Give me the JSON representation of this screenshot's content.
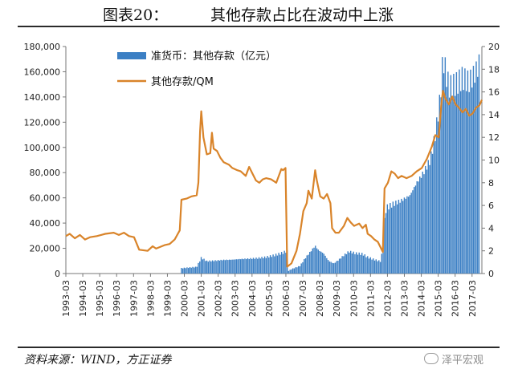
{
  "header": {
    "figure_label": "图表20：",
    "title": "其他存款占比在波动中上涨"
  },
  "footer": {
    "source": "资料来源：WIND，方正证券",
    "watermark": "泽平宏观",
    "watermark_icon": "wechat-icon"
  },
  "chart_data": {
    "type": "bar+line",
    "title": "其他存款占比在波动中上涨",
    "x_tick_labels": [
      "1993-03",
      "1994-03",
      "1995-03",
      "1996-03",
      "1997-03",
      "1998-03",
      "1999-03",
      "2000-03",
      "2001-03",
      "2002-03",
      "2003-03",
      "2004-03",
      "2005-03",
      "2006-03",
      "2007-03",
      "2008-03",
      "2009-03",
      "2010-03",
      "2011-03",
      "2012-03",
      "2013-03",
      "2014-03",
      "2015-03",
      "2016-03",
      "2017-03"
    ],
    "x_range": [
      1993.17,
      2017.75
    ],
    "y_left": {
      "ticks": [
        "0",
        "20,000",
        "40,000",
        "60,000",
        "80,000",
        "100,000",
        "120,000",
        "140,000",
        "160,000",
        "180,000"
      ],
      "range": [
        0,
        180000
      ]
    },
    "y_right": {
      "ticks": [
        "0",
        "2",
        "4",
        "6",
        "8",
        "10",
        "12",
        "14",
        "16",
        "18",
        "20"
      ],
      "range": [
        0,
        20
      ]
    },
    "grid": false,
    "legend_position": "top-left",
    "series": [
      {
        "name": "准货币：其他存款（亿元）",
        "kind": "bar",
        "axis": "left",
        "color": "#3b7fc4",
        "points": [
          [
            2000.0,
            4200
          ],
          [
            2000.5,
            4800
          ],
          [
            2000.9,
            5200
          ],
          [
            2001.17,
            12500
          ],
          [
            2001.5,
            9800
          ],
          [
            2002.0,
            10200
          ],
          [
            2002.5,
            10800
          ],
          [
            2003.0,
            11000
          ],
          [
            2003.5,
            11500
          ],
          [
            2004.0,
            11800
          ],
          [
            2004.5,
            12200
          ],
          [
            2005.0,
            13000
          ],
          [
            2005.5,
            14500
          ],
          [
            2006.0,
            16500
          ],
          [
            2006.15,
            17500
          ],
          [
            2006.25,
            1500
          ],
          [
            2006.5,
            3500
          ],
          [
            2007.0,
            6000
          ],
          [
            2007.3,
            12000
          ],
          [
            2007.6,
            17000
          ],
          [
            2007.9,
            22000
          ],
          [
            2008.1,
            18500
          ],
          [
            2008.4,
            16000
          ],
          [
            2008.7,
            10000
          ],
          [
            2009.0,
            8000
          ],
          [
            2009.3,
            11000
          ],
          [
            2009.6,
            14500
          ],
          [
            2009.9,
            17500
          ],
          [
            2010.3,
            16000
          ],
          [
            2010.7,
            15500
          ],
          [
            2011.0,
            13000
          ],
          [
            2011.4,
            11000
          ],
          [
            2011.8,
            9500
          ],
          [
            2012.0,
            42000
          ],
          [
            2012.1,
            52000
          ],
          [
            2012.5,
            55000
          ],
          [
            2013.0,
            58000
          ],
          [
            2013.5,
            62000
          ],
          [
            2013.9,
            72000
          ],
          [
            2014.3,
            80000
          ],
          [
            2014.7,
            90000
          ],
          [
            2015.0,
            110000
          ],
          [
            2015.3,
            140000
          ],
          [
            2015.4,
            162000
          ],
          [
            2015.5,
            168000
          ],
          [
            2015.8,
            148000
          ],
          [
            2016.2,
            150000
          ],
          [
            2016.6,
            155000
          ],
          [
            2017.0,
            152000
          ],
          [
            2017.3,
            158000
          ],
          [
            2017.5,
            163000
          ],
          [
            2017.65,
            170000
          ]
        ]
      },
      {
        "name": "其他存款/QM",
        "kind": "line",
        "axis": "right",
        "color": "#d9842a",
        "points": [
          [
            1993.17,
            3.3
          ],
          [
            1993.4,
            3.5
          ],
          [
            1993.7,
            3.1
          ],
          [
            1994.0,
            3.4
          ],
          [
            1994.3,
            3.0
          ],
          [
            1994.6,
            3.2
          ],
          [
            1995.0,
            3.3
          ],
          [
            1995.5,
            3.5
          ],
          [
            1996.0,
            3.6
          ],
          [
            1996.3,
            3.4
          ],
          [
            1996.6,
            3.6
          ],
          [
            1996.9,
            3.3
          ],
          [
            1997.2,
            3.2
          ],
          [
            1997.5,
            2.1
          ],
          [
            1998.0,
            2.0
          ],
          [
            1998.3,
            2.4
          ],
          [
            1998.5,
            2.2
          ],
          [
            1999.0,
            2.5
          ],
          [
            1999.3,
            2.6
          ],
          [
            1999.6,
            3.0
          ],
          [
            1999.9,
            3.8
          ],
          [
            2000.0,
            6.5
          ],
          [
            2000.3,
            6.6
          ],
          [
            2000.6,
            6.8
          ],
          [
            2000.9,
            6.9
          ],
          [
            2001.0,
            8.0
          ],
          [
            2001.1,
            12.5
          ],
          [
            2001.17,
            14.3
          ],
          [
            2001.3,
            12.0
          ],
          [
            2001.5,
            10.5
          ],
          [
            2001.7,
            10.6
          ],
          [
            2001.8,
            12.4
          ],
          [
            2001.9,
            11.0
          ],
          [
            2002.1,
            10.8
          ],
          [
            2002.3,
            10.2
          ],
          [
            2002.5,
            9.8
          ],
          [
            2002.8,
            9.6
          ],
          [
            2003.0,
            9.3
          ],
          [
            2003.3,
            9.1
          ],
          [
            2003.5,
            9.0
          ],
          [
            2003.8,
            8.6
          ],
          [
            2004.0,
            9.4
          ],
          [
            2004.2,
            8.8
          ],
          [
            2004.4,
            8.2
          ],
          [
            2004.6,
            8.0
          ],
          [
            2004.8,
            8.3
          ],
          [
            2005.0,
            8.4
          ],
          [
            2005.3,
            8.3
          ],
          [
            2005.6,
            8.0
          ],
          [
            2005.9,
            9.2
          ],
          [
            2006.0,
            9.1
          ],
          [
            2006.15,
            9.3
          ],
          [
            2006.25,
            0.6
          ],
          [
            2006.5,
            0.9
          ],
          [
            2006.8,
            2.0
          ],
          [
            2007.0,
            3.5
          ],
          [
            2007.2,
            5.5
          ],
          [
            2007.4,
            6.2
          ],
          [
            2007.5,
            7.3
          ],
          [
            2007.7,
            6.6
          ],
          [
            2007.9,
            9.1
          ],
          [
            2008.0,
            8.2
          ],
          [
            2008.2,
            6.8
          ],
          [
            2008.4,
            6.6
          ],
          [
            2008.6,
            7.0
          ],
          [
            2008.8,
            6.2
          ],
          [
            2008.9,
            4.0
          ],
          [
            2009.1,
            3.6
          ],
          [
            2009.3,
            3.6
          ],
          [
            2009.6,
            4.2
          ],
          [
            2009.8,
            4.9
          ],
          [
            2010.0,
            4.5
          ],
          [
            2010.2,
            4.2
          ],
          [
            2010.5,
            4.4
          ],
          [
            2010.7,
            4.0
          ],
          [
            2010.9,
            4.3
          ],
          [
            2011.0,
            3.5
          ],
          [
            2011.2,
            3.3
          ],
          [
            2011.4,
            3.0
          ],
          [
            2011.6,
            2.8
          ],
          [
            2011.8,
            2.2
          ],
          [
            2011.9,
            1.9
          ],
          [
            2012.0,
            7.5
          ],
          [
            2012.2,
            8.0
          ],
          [
            2012.4,
            9.0
          ],
          [
            2012.6,
            8.8
          ],
          [
            2012.8,
            8.4
          ],
          [
            2013.0,
            8.6
          ],
          [
            2013.3,
            8.4
          ],
          [
            2013.6,
            8.6
          ],
          [
            2013.9,
            9.0
          ],
          [
            2014.2,
            9.3
          ],
          [
            2014.5,
            10.1
          ],
          [
            2014.8,
            11.2
          ],
          [
            2015.0,
            12.2
          ],
          [
            2015.2,
            12.0
          ],
          [
            2015.35,
            14.8
          ],
          [
            2015.45,
            16.1
          ],
          [
            2015.6,
            15.4
          ],
          [
            2015.8,
            14.9
          ],
          [
            2016.0,
            15.6
          ],
          [
            2016.2,
            14.9
          ],
          [
            2016.4,
            14.6
          ],
          [
            2016.6,
            14.2
          ],
          [
            2016.8,
            14.5
          ],
          [
            2017.0,
            13.9
          ],
          [
            2017.2,
            14.1
          ],
          [
            2017.4,
            14.6
          ],
          [
            2017.6,
            14.8
          ],
          [
            2017.75,
            15.3
          ]
        ]
      }
    ]
  }
}
